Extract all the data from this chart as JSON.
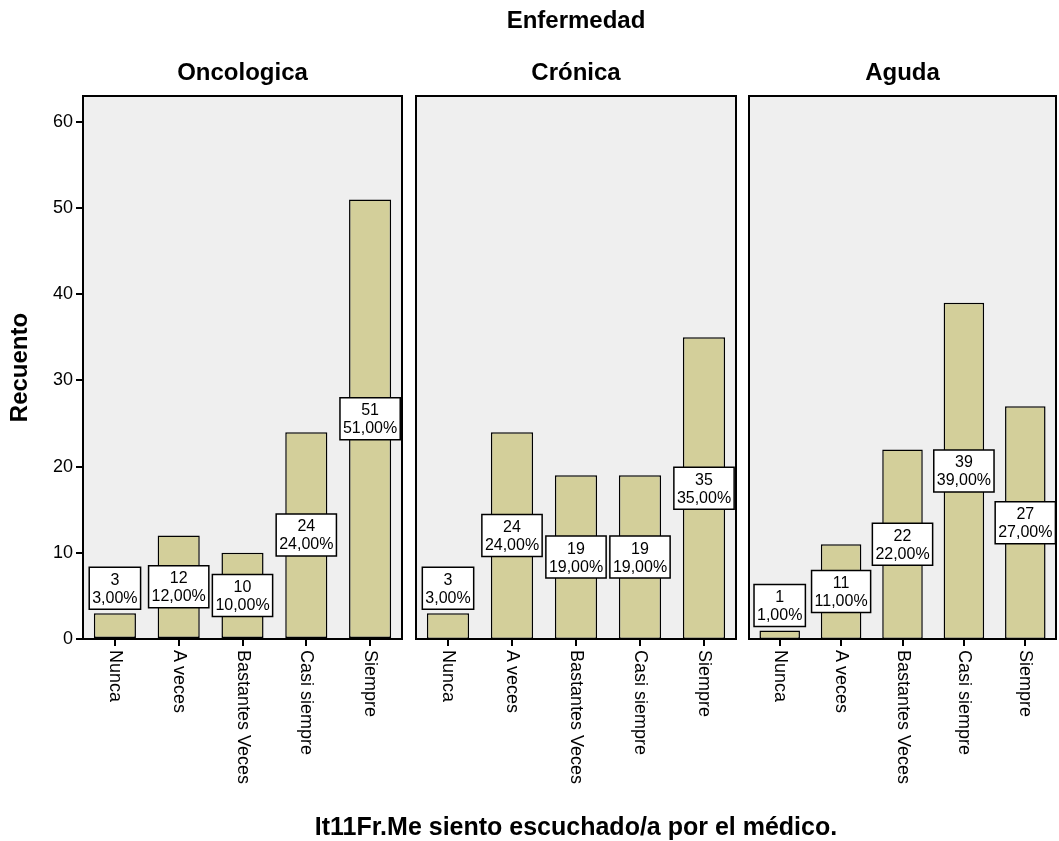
{
  "chart_data": [
    {
      "type": "bar",
      "title": "Oncologica",
      "ylabel": "Recuento",
      "categories": [
        "Nunca",
        "A veces",
        "Bastantes Veces",
        "Casi siempre",
        "Siempre"
      ],
      "values": [
        3,
        12,
        10,
        24,
        51
      ],
      "color": "#d3cf9a",
      "value_labels": [
        "3\n3,00%",
        "12\n12,00%",
        "10\n10,00%",
        "24\n24,00%",
        "51\n51,00%"
      ],
      "ylim": [
        0,
        63
      ],
      "yticks": [
        0,
        10,
        20,
        30,
        40,
        50,
        60
      ]
    },
    {
      "type": "bar",
      "title": "Crónica",
      "annotations": [
        "Enfermedad"
      ],
      "xlabel": "It11Fr.Me siento escuchado/a por el médico.",
      "categories": [
        "Nunca",
        "A veces",
        "Bastantes Veces",
        "Casi siempre",
        "Siempre"
      ],
      "values": [
        3,
        24,
        19,
        19,
        35
      ],
      "color": "#d3cf9a",
      "value_labels": [
        "3\n3,00%",
        "24\n24,00%",
        "19\n19,00%",
        "19\n19,00%",
        "35\n35,00%"
      ],
      "ylim": [
        0,
        63
      ],
      "tick_labels": "x"
    },
    {
      "type": "bar",
      "title": "Aguda",
      "categories": [
        "Nunca",
        "A veces",
        "Bastantes Veces",
        "Casi siempre",
        "Siempre"
      ],
      "values": [
        1,
        11,
        22,
        39,
        27
      ],
      "color": "#d3cf9a",
      "value_labels": [
        "1\n1,00%",
        "11\n11,00%",
        "22\n22,00%",
        "39\n39,00%",
        "27\n27,00%"
      ],
      "ylim": [
        0,
        63
      ],
      "tick_labels": "x"
    }
  ]
}
